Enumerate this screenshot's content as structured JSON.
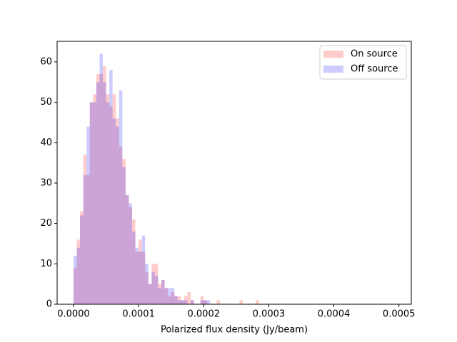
{
  "chart_data": {
    "type": "histogram",
    "xlabel": "Polarized flux density (Jy/beam)",
    "bins": [
      0,
      5e-06,
      1e-05,
      1.5e-05,
      2e-05,
      2.5e-05,
      3e-05,
      3.5e-05,
      4e-05,
      4.5e-05,
      5e-05,
      5.5e-05,
      6e-05,
      6.5e-05,
      7e-05,
      7.5e-05,
      8e-05,
      8.5e-05,
      9e-05,
      9.5e-05,
      0.0001,
      0.000105,
      0.00011,
      0.000115,
      0.00012,
      0.000125,
      0.00013,
      0.000135,
      0.00014,
      0.000145,
      0.00015,
      0.000155,
      0.00016,
      0.000165,
      0.00017,
      0.000175,
      0.00018,
      0.000185,
      0.00019,
      0.000195,
      0.0002,
      0.000205,
      0.00021,
      0.000215,
      0.00022,
      0.000225,
      0.00023,
      0.000235,
      0.00024,
      0.000245,
      0.00025,
      0.000255,
      0.00026,
      0.000265,
      0.00027,
      0.000275,
      0.00028,
      0.000285,
      0.00029,
      0.000295,
      0.0003
    ],
    "series": [
      {
        "name": "On source",
        "color": "#ff0000",
        "values": [
          9,
          16,
          23,
          37,
          32,
          50,
          52,
          57,
          57,
          59,
          52,
          49,
          52,
          46,
          39,
          36,
          27,
          24,
          21,
          13,
          16,
          13,
          8,
          5,
          10,
          10,
          5,
          6,
          4,
          2,
          3,
          2,
          2,
          1,
          2,
          3,
          1,
          0,
          0,
          2,
          1,
          0,
          0,
          0,
          1,
          0,
          0,
          0,
          0,
          0,
          0,
          1,
          0,
          0,
          0,
          0,
          1,
          0,
          0,
          0
        ]
      },
      {
        "name": "Off source",
        "color": "#0000ff",
        "values": [
          12,
          14,
          22,
          32,
          44,
          50,
          50,
          55,
          62,
          55,
          50,
          58,
          46,
          44,
          53,
          34,
          27,
          25,
          18,
          14,
          13,
          17,
          10,
          5,
          8,
          7,
          4,
          6,
          4,
          4,
          4,
          2,
          1,
          1,
          1,
          0,
          1,
          0,
          0,
          1,
          1,
          1,
          0,
          0,
          0,
          0,
          0,
          0,
          0,
          0,
          0,
          0,
          0,
          0,
          0,
          0,
          0,
          0,
          0,
          0
        ]
      }
    ],
    "alpha": 0.2,
    "xlim": [
      -2.52e-05,
      0.000519
    ],
    "ylim": [
      0,
      65.1
    ],
    "xticks": [
      {
        "value": 0,
        "label": "0.0000"
      },
      {
        "value": 0.0001,
        "label": "0.0001"
      },
      {
        "value": 0.0002,
        "label": "0.0002"
      },
      {
        "value": 0.0003,
        "label": "0.0003"
      },
      {
        "value": 0.0004,
        "label": "0.0004"
      },
      {
        "value": 0.0005,
        "label": "0.0005"
      }
    ],
    "yticks": [
      0,
      10,
      20,
      30,
      40,
      50,
      60
    ],
    "legend": "upper right"
  }
}
